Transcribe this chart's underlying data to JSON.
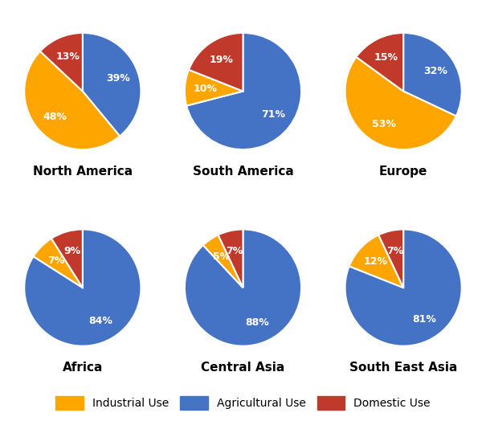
{
  "regions": [
    "North America",
    "South America",
    "Europe",
    "Africa",
    "Central Asia",
    "South East Asia"
  ],
  "data": {
    "North America": [
      39,
      48,
      13
    ],
    "South America": [
      71,
      10,
      19
    ],
    "Europe": [
      32,
      53,
      15
    ],
    "Africa": [
      84,
      7,
      9
    ],
    "Central Asia": [
      88,
      5,
      7
    ],
    "South East Asia": [
      81,
      12,
      7
    ]
  },
  "keys": [
    "Agricultural",
    "Industrial",
    "Domestic"
  ],
  "colors": [
    "#4472C4",
    "#FFA500",
    "#C0392B"
  ],
  "startangles": {
    "North America": 90,
    "South America": 90,
    "Europe": 90,
    "Africa": 90,
    "Central Asia": 90,
    "South East Asia": 90
  },
  "figure_bg": "#FFFFFF",
  "title_fontsize": 11,
  "legend_fontsize": 10,
  "pct_fontsize": 9,
  "legend_labels": [
    "Industrial Use",
    "Agricultural Use",
    "Domestic Use"
  ],
  "legend_colors": [
    "#FFA500",
    "#4472C4",
    "#C0392B"
  ]
}
